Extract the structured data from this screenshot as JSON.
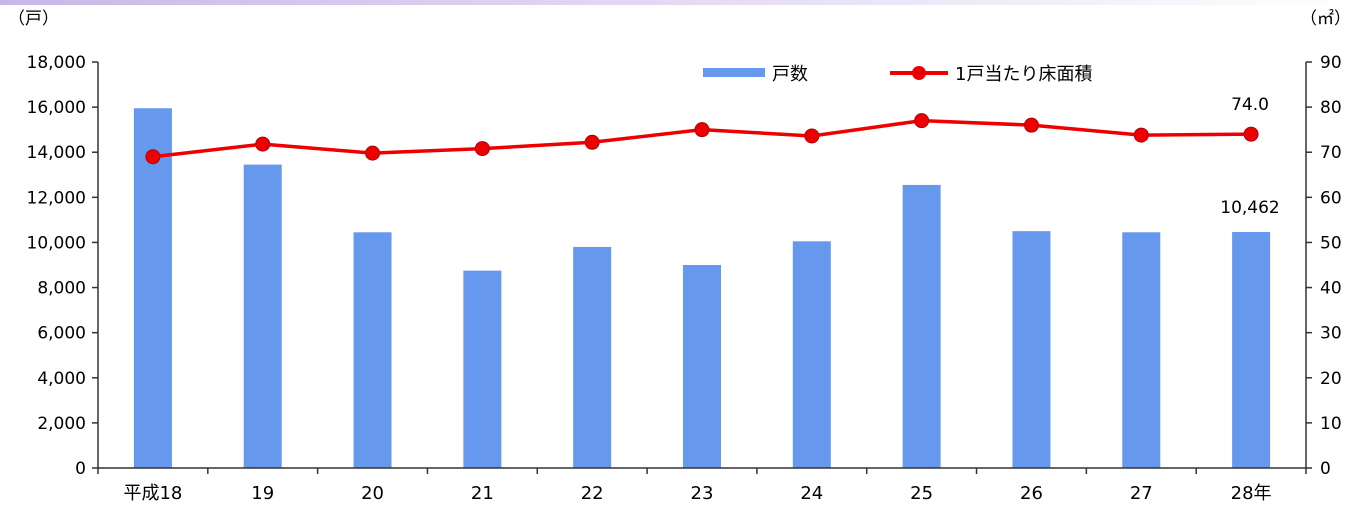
{
  "chart_data": {
    "type": "bar",
    "categories": [
      "平成18",
      "19",
      "20",
      "21",
      "22",
      "23",
      "24",
      "25",
      "26",
      "27",
      "28年"
    ],
    "series": [
      {
        "name": "戸数",
        "type": "bar",
        "axis": "left",
        "color": "#6699ee",
        "values": [
          15950,
          13450,
          10450,
          8750,
          9800,
          9000,
          10050,
          12550,
          10500,
          10450,
          10462
        ]
      },
      {
        "name": "1戸当たり床面積",
        "type": "line",
        "axis": "right",
        "color": "#ee0000",
        "values": [
          69.0,
          71.8,
          69.8,
          70.8,
          72.2,
          75.0,
          73.6,
          77.0,
          76.0,
          73.8,
          74.0
        ]
      }
    ],
    "y_left": {
      "unit": "（戸）",
      "ylim": [
        0,
        18000
      ],
      "ticks": [
        "0",
        "2,000",
        "4,000",
        "6,000",
        "8,000",
        "10,000",
        "12,000",
        "14,000",
        "16,000",
        "18,000"
      ]
    },
    "y_right": {
      "unit": "（㎡）",
      "ylim": [
        0,
        90
      ],
      "ticks": [
        "0",
        "10",
        "20",
        "30",
        "40",
        "50",
        "60",
        "70",
        "80",
        "90"
      ]
    },
    "annotations": [
      "74.0",
      "10,462"
    ],
    "legend_position": "top-right",
    "grid": false
  }
}
